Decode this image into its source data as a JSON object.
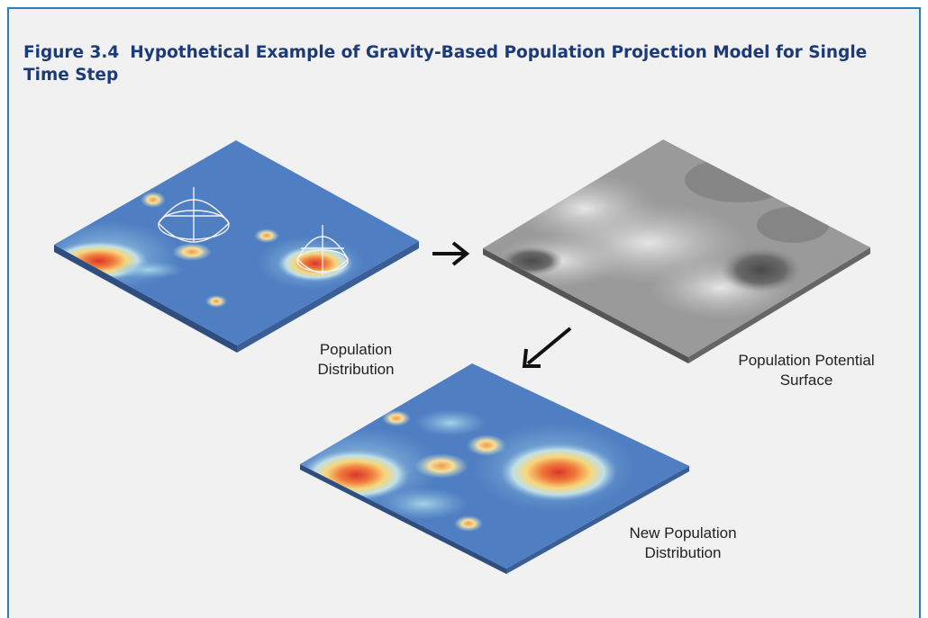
{
  "figure": {
    "number": "Figure 3.4",
    "title": "Hypothetical Example of Gravity-Based Population Projection Model for Single Time Step"
  },
  "panels": {
    "population_distribution": {
      "label_line1": "Population",
      "label_line2": "Distribution"
    },
    "population_potential_surface": {
      "label_line1": "Population Potential",
      "label_line2": "Surface"
    },
    "new_population_distribution": {
      "label_line1": "New Population",
      "label_line2": "Distribution"
    }
  },
  "colors": {
    "frame_border": "#2b7fb8",
    "title": "#1a3a7a",
    "background": "#f1f1f1",
    "map_base": "#4f7ec2",
    "density_high": "#e0412a",
    "density_mid": "#f5d77a",
    "potential_surface": "#9a9a9a"
  }
}
